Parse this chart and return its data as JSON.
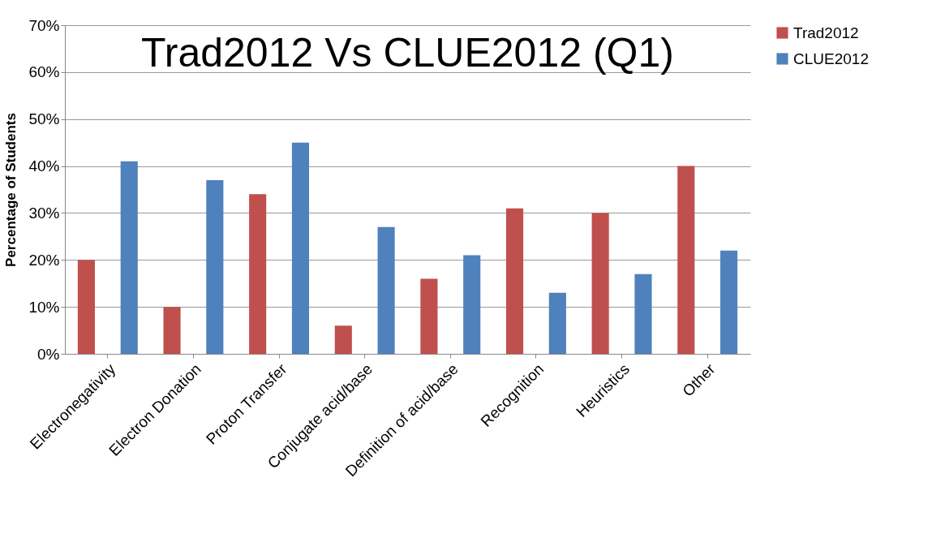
{
  "chart_data": {
    "type": "bar",
    "title": "Trad2012 Vs CLUE2012 (Q1)",
    "ylabel": "Percentage of Students",
    "categories": [
      "Electronegativity",
      "Electron Donation",
      "Proton Transfer",
      "Conjugate acid/base",
      "Definition of acid/base",
      "Recognition",
      "Heuristics",
      "Other"
    ],
    "series": [
      {
        "name": "Trad2012",
        "color": "#c0504d",
        "values": [
          20,
          10,
          34,
          6,
          16,
          31,
          30,
          40
        ]
      },
      {
        "name": "CLUE2012",
        "color": "#4f81bd",
        "values": [
          41,
          37,
          45,
          27,
          21,
          13,
          17,
          22
        ]
      }
    ],
    "ylim": [
      0,
      70
    ],
    "yticks": [
      {
        "value": 0,
        "label": "0%"
      },
      {
        "value": 10,
        "label": "10%"
      },
      {
        "value": 20,
        "label": "20%"
      },
      {
        "value": 30,
        "label": "30%"
      },
      {
        "value": 40,
        "label": "40%"
      },
      {
        "value": 50,
        "label": "50%"
      },
      {
        "value": 60,
        "label": "60%"
      },
      {
        "value": 70,
        "label": "70%"
      }
    ],
    "grid": "y",
    "legend": "top right"
  }
}
